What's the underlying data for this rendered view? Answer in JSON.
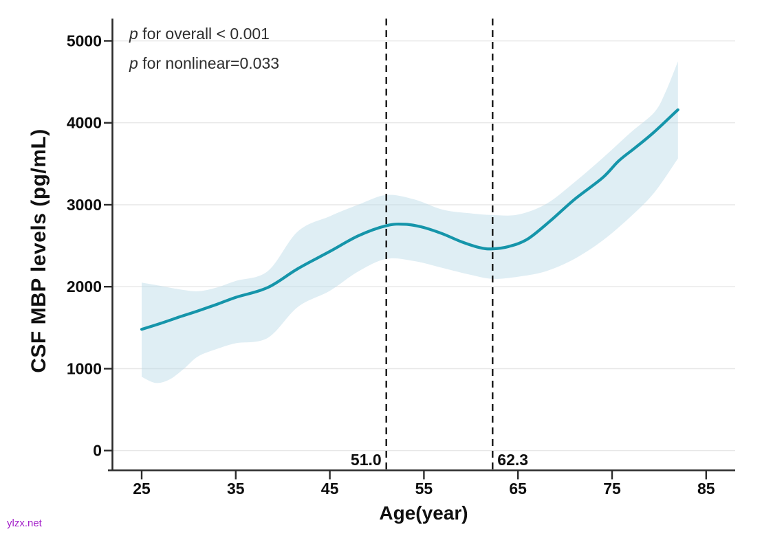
{
  "watermark": {
    "text": "ylzx.net",
    "color": "#a31fc9"
  },
  "chart_data": {
    "type": "line",
    "title": "",
    "xlabel": "Age(year)",
    "ylabel": "CSF MBP levels (pg/mL)",
    "annotations": [
      {
        "prefix": "p",
        "rest": " for overall < 0.001"
      },
      {
        "prefix": "p",
        "rest": " for nonlinear=0.033"
      }
    ],
    "x_ticks": [
      25,
      35,
      45,
      55,
      65,
      75,
      85
    ],
    "y_ticks": [
      0,
      1000,
      2000,
      3000,
      4000,
      5000
    ],
    "xlim": [
      21.9,
      88.1
    ],
    "ylim": [
      -240,
      5270
    ],
    "grid": "horizontal-only",
    "legend": "none",
    "reference_lines": [
      {
        "x": 51.0,
        "label": "51.0",
        "label_side": "left"
      },
      {
        "x": 62.3,
        "label": "62.3",
        "label_side": "right"
      }
    ],
    "series": [
      {
        "name": "RCS estimate",
        "role": "center",
        "color": "#1595aa",
        "x": [
          25,
          27,
          29,
          31,
          33,
          35,
          38.4,
          41.6,
          45,
          48,
          51,
          53,
          55,
          57,
          59,
          61,
          62.3,
          64,
          66,
          68.4,
          71,
          74,
          75.7,
          77.5,
          79.4,
          82
        ],
        "y": [
          1480,
          1552,
          1630,
          1705,
          1785,
          1870,
          1990,
          2220,
          2430,
          2620,
          2745,
          2762,
          2722,
          2645,
          2548,
          2475,
          2462,
          2490,
          2580,
          2800,
          3065,
          3330,
          3535,
          3700,
          3880,
          4160
        ]
      },
      {
        "name": "95% CI upper",
        "role": "band_upper",
        "color": "#dfeef4",
        "x": [
          25,
          27,
          29,
          31,
          33,
          35,
          38.4,
          41.6,
          45,
          48,
          51,
          54,
          57,
          60,
          62.3,
          65,
          68,
          71,
          74,
          77,
          79.5,
          80.7,
          82
        ],
        "y": [
          2050,
          2010,
          1968,
          1945,
          1990,
          2070,
          2190,
          2675,
          2860,
          3000,
          3120,
          3065,
          2940,
          2895,
          2875,
          2880,
          3010,
          3275,
          3570,
          3885,
          4130,
          4380,
          4750
        ]
      },
      {
        "name": "95% CI lower",
        "role": "band_lower",
        "color": "#dfeef4",
        "x": [
          25,
          26.5,
          28,
          29.5,
          31,
          33,
          35,
          38.4,
          41.6,
          45,
          48,
          51,
          54,
          57,
          60,
          62.3,
          65,
          68,
          71,
          74,
          77,
          79.5,
          82
        ],
        "y": [
          900,
          825,
          870,
          1000,
          1150,
          1240,
          1310,
          1375,
          1753,
          1950,
          2185,
          2340,
          2312,
          2228,
          2144,
          2096,
          2122,
          2190,
          2340,
          2564,
          2858,
          3151,
          3565
        ]
      }
    ],
    "colors": {
      "curve": "#1595aa",
      "band_fill": "#b8d9e6",
      "grid": "#e7e7e7",
      "axis": "#2b2b2b",
      "tick_text": "#0d0d0d",
      "dashed": "#151515"
    }
  }
}
